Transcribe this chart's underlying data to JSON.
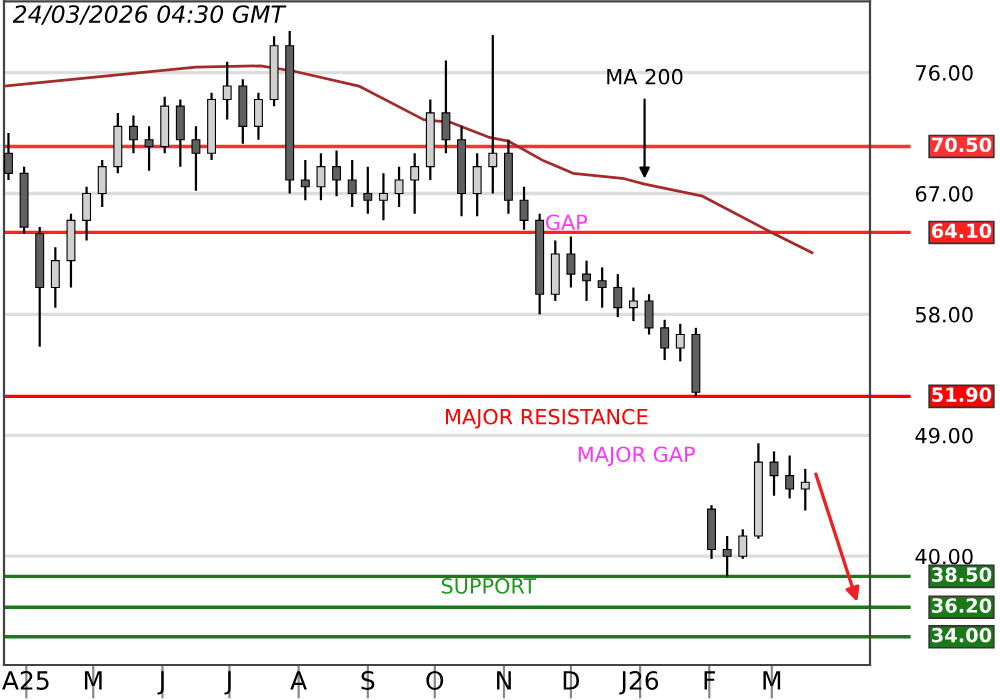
{
  "chart_data": {
    "type": "candlestick",
    "x": [
      "2025-03-24",
      "2025-03-31",
      "2025-04-07",
      "2025-04-14",
      "2025-04-21",
      "2025-04-28",
      "2025-05-05",
      "2025-05-12",
      "2025-05-19",
      "2025-05-26",
      "2025-06-02",
      "2025-06-09",
      "2025-06-16",
      "2025-06-23",
      "2025-06-30",
      "2025-07-07",
      "2025-07-14",
      "2025-07-21",
      "2025-07-28",
      "2025-08-04",
      "2025-08-11",
      "2025-08-18",
      "2025-08-25",
      "2025-09-01",
      "2025-09-08",
      "2025-09-15",
      "2025-09-22",
      "2025-09-29",
      "2025-10-06",
      "2025-10-13",
      "2025-10-20",
      "2025-10-27",
      "2025-11-03",
      "2025-11-10",
      "2025-11-17",
      "2025-11-24",
      "2025-12-01",
      "2025-12-08",
      "2025-12-15",
      "2025-12-22",
      "2025-12-29",
      "2026-01-05",
      "2026-01-12",
      "2026-01-19",
      "2026-01-26",
      "2026-02-02",
      "2026-02-09",
      "2026-02-16",
      "2026-02-23",
      "2026-03-02",
      "2026-03-09",
      "2026-03-16"
    ],
    "ohlc": [
      [
        70,
        71.5,
        68,
        68.5
      ],
      [
        68.5,
        69,
        64,
        64.5
      ],
      [
        64,
        64.5,
        55.6,
        60
      ],
      [
        60,
        63,
        58.5,
        62
      ],
      [
        62,
        65.5,
        60,
        65
      ],
      [
        65,
        67.5,
        63.5,
        67
      ],
      [
        67,
        69.5,
        66,
        69
      ],
      [
        69,
        73,
        68.5,
        72
      ],
      [
        72,
        72.8,
        70,
        71
      ],
      [
        71,
        72,
        68.7,
        70.5
      ],
      [
        70.5,
        74.2,
        70,
        73.5
      ],
      [
        73.5,
        74,
        69,
        71
      ],
      [
        71,
        72,
        67.2,
        70
      ],
      [
        70,
        74.5,
        69.5,
        74
      ],
      [
        74,
        76.8,
        72.5,
        75
      ],
      [
        75,
        75.5,
        70.7,
        72
      ],
      [
        72,
        74.5,
        71,
        74
      ],
      [
        74,
        78.7,
        73.5,
        78
      ],
      [
        78,
        79.1,
        67,
        68
      ],
      [
        68,
        69.5,
        66.5,
        67.5
      ],
      [
        67.5,
        70,
        66.5,
        69
      ],
      [
        69,
        70.2,
        66.8,
        68
      ],
      [
        68,
        69.5,
        66,
        67
      ],
      [
        67,
        69,
        65.5,
        66.5
      ],
      [
        66.5,
        68.5,
        65,
        67
      ],
      [
        67,
        69,
        66,
        68
      ],
      [
        68,
        70,
        65.5,
        69
      ],
      [
        69,
        74,
        68,
        73
      ],
      [
        73,
        76.9,
        70,
        71
      ],
      [
        71,
        72,
        65.3,
        67
      ],
      [
        67,
        70,
        65.3,
        69
      ],
      [
        69,
        78.8,
        67,
        70
      ],
      [
        70,
        71,
        65.5,
        66.5
      ],
      [
        66.5,
        67.5,
        64.3,
        65
      ],
      [
        65,
        65.5,
        58,
        59.5
      ],
      [
        59.5,
        63.5,
        59,
        62.5
      ],
      [
        62.5,
        63.8,
        60,
        61
      ],
      [
        61,
        62,
        59,
        60.5
      ],
      [
        60.5,
        61.5,
        58.5,
        60
      ],
      [
        60,
        61,
        57.8,
        58.5
      ],
      [
        58.5,
        60,
        57.5,
        59
      ],
      [
        59,
        59.5,
        56.5,
        57
      ],
      [
        57,
        57.6,
        54.6,
        55.5
      ],
      [
        55.5,
        57.3,
        54.5,
        56.5
      ],
      [
        56.5,
        57,
        51.9,
        52.2
      ],
      [
        43.5,
        43.8,
        39.8,
        40.5
      ],
      [
        40.5,
        41.5,
        38.5,
        40
      ],
      [
        40,
        42,
        39.8,
        41.5
      ],
      [
        41.5,
        48.4,
        41.3,
        47
      ],
      [
        47,
        47.8,
        44.5,
        46
      ],
      [
        46,
        47.5,
        44.3,
        45
      ],
      [
        45,
        46.5,
        43.4,
        45.5
      ]
    ],
    "series": [
      {
        "type": "line",
        "color": "#a52a2a",
        "x": [
          "2025-03-22",
          "2025-05-04",
          "2025-06-16",
          "2025-07-15",
          "2025-07-30",
          "2025-08-28",
          "2025-09-26",
          "2025-10-08",
          "2025-10-25",
          "2025-11-03",
          "2025-11-18",
          "2025-12-02",
          "2025-12-25",
          "2026-01-03",
          "2026-01-29",
          "2026-03-02",
          "2026-03-19"
        ],
        "values": [
          75.0,
          75.7,
          76.4,
          76.5,
          76.1,
          75.0,
          72.5,
          72.3,
          71.2,
          70.9,
          69.5,
          68.5,
          68.1,
          67.7,
          66.8,
          64.0,
          62.6
        ]
      }
    ],
    "xlim": [
      "2025-03-22",
      "2026-04-14"
    ],
    "xticks": [
      {
        "value": "2025-04-01",
        "label": "A25"
      },
      {
        "value": "2025-05-01",
        "label": "M"
      },
      {
        "value": "2025-06-01",
        "label": "J"
      },
      {
        "value": "2025-07-01",
        "label": "J"
      },
      {
        "value": "2025-08-01",
        "label": "A"
      },
      {
        "value": "2025-09-01",
        "label": "S"
      },
      {
        "value": "2025-10-01",
        "label": "O"
      },
      {
        "value": "2025-11-01",
        "label": "N"
      },
      {
        "value": "2025-12-01",
        "label": "D"
      },
      {
        "value": "2026-01-01",
        "label": "J26"
      },
      {
        "value": "2026-02-01",
        "label": "F"
      },
      {
        "value": "2026-03-01",
        "label": "M"
      }
    ],
    "ylim": [
      31.9,
      81.3
    ],
    "yticks": [
      {
        "value": 40,
        "label": "40.00"
      },
      {
        "value": 49,
        "label": "49.00"
      },
      {
        "value": 58,
        "label": "58.00"
      },
      {
        "value": 67,
        "label": "67.00"
      },
      {
        "value": 76,
        "label": "76.00"
      }
    ],
    "grid": "y",
    "ref_lines": [
      {
        "axis": "y",
        "value": 70.5,
        "label": "70.50",
        "color": "#ff3030"
      },
      {
        "axis": "y",
        "value": 64.1,
        "label": "64.10",
        "color": "#ff2020"
      },
      {
        "axis": "y",
        "value": 51.9,
        "label": "51.90",
        "color": "#ff0000"
      },
      {
        "axis": "y",
        "value": 38.5,
        "label": "38.50",
        "color": "#1a7a1a"
      },
      {
        "axis": "y",
        "value": 36.2,
        "label": "36.20",
        "color": "#1a7a1a"
      },
      {
        "axis": "y",
        "value": 34.0,
        "label": "34.00",
        "color": "#1a7a1a"
      }
    ],
    "annotations": [
      "24/03/2026 04:30 GMT",
      {
        "text": "MA 200",
        "x": "2026-01-03",
        "y": 67.7
      },
      {
        "text": "GAP",
        "x": "2025-11-14",
        "y": 64.1
      },
      {
        "text": "MAJOR RESISTANCE",
        "x": "2025-11-20",
        "y": 51.9
      },
      "MAJOR GAP",
      {
        "text": "SUPPORT",
        "x": "2025-10-25",
        "y": 36.2
      }
    ]
  }
}
